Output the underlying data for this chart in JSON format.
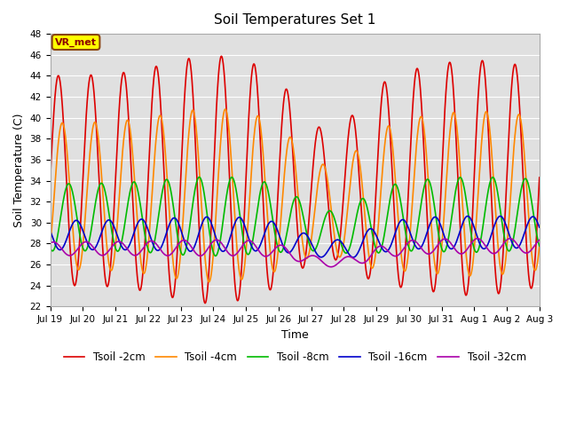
{
  "title": "Soil Temperatures Set 1",
  "xlabel": "Time",
  "ylabel": "Soil Temperature (C)",
  "ylim": [
    22,
    48
  ],
  "n_days": 15,
  "background_color": "#e0e0e0",
  "fig_background": "#ffffff",
  "grid_color": "#ffffff",
  "annotation_text": "VR_met",
  "annotation_box_facecolor": "#ffff00",
  "annotation_text_color": "#8b0000",
  "annotation_edge_color": "#8b4513",
  "x_tick_labels": [
    "Jul 19",
    "Jul 20",
    "Jul 21",
    "Jul 22",
    "Jul 23",
    "Jul 24",
    "Jul 25",
    "Jul 26",
    "Jul 27",
    "Jul 28",
    "Jul 29",
    "Jul 30",
    "Jul 31",
    "Aug 1",
    "Aug 2",
    "Aug 3"
  ],
  "series": [
    {
      "label": "Tsoil -2cm",
      "color": "#dd0000",
      "amplitude": 10.0,
      "mean": 34.0,
      "phase_shift": 0.0
    },
    {
      "label": "Tsoil -4cm",
      "color": "#ff8800",
      "amplitude": 7.0,
      "mean": 32.5,
      "phase_shift": 0.12
    },
    {
      "label": "Tsoil -8cm",
      "color": "#00bb00",
      "amplitude": 3.2,
      "mean": 30.5,
      "phase_shift": 0.32
    },
    {
      "label": "Tsoil -16cm",
      "color": "#0000cc",
      "amplitude": 1.4,
      "mean": 28.8,
      "phase_shift": 0.55
    },
    {
      "label": "Tsoil -32cm",
      "color": "#aa00aa",
      "amplitude": 0.65,
      "mean": 27.5,
      "phase_shift": 0.85
    }
  ],
  "linewidth": 1.2
}
